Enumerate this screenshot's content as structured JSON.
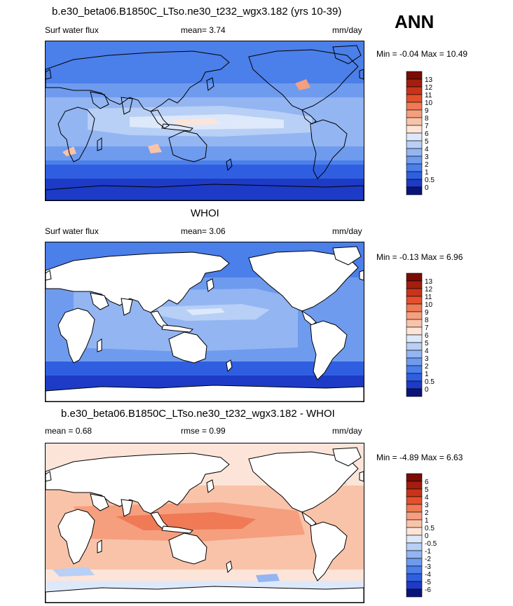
{
  "season": "ANN",
  "colors": {
    "fixed_scale": [
      "#0a1478",
      "#1d3bc6",
      "#2f5fe0",
      "#4b7fea",
      "#6f9bee",
      "#93b5f2",
      "#b8cff6",
      "#dde9fa",
      "#fde4d8",
      "#f9c3aa",
      "#f59f7e",
      "#ef7a55",
      "#e4502d",
      "#c8341a",
      "#a31e0e",
      "#7a0c05"
    ],
    "diff_scale": [
      "#0a1478",
      "#1d3bc6",
      "#2f5fe0",
      "#4b7fea",
      "#6f9bee",
      "#93b5f2",
      "#b8cff6",
      "#dde9fa",
      "#fde4d8",
      "#f9c3aa",
      "#f59f7e",
      "#ef7a55",
      "#e4502d",
      "#c8341a",
      "#a31e0e",
      "#7a0c05"
    ],
    "land": "#ffffff",
    "coast": "#000000"
  },
  "panels": [
    {
      "id": "model",
      "title": "b.e30_beta06.B1850C_LTso.ne30_t232_wgx3.182 (yrs 10-39)",
      "left_label": "Surf water flux",
      "mid_label": "mean=  3.74",
      "units": "mm/day",
      "minmax": "Min =  -0.04 Max =  10.49",
      "colorbar_labels": [
        "13",
        "12",
        "11",
        "10",
        "9",
        "8",
        "7",
        "6",
        "5",
        "4",
        "3",
        "2",
        "1",
        "0.5",
        "0"
      ],
      "land_masked": false,
      "mean_value": 3.74
    },
    {
      "id": "obs",
      "title": "WHOI",
      "left_label": "Surf water flux",
      "mid_label": "mean=  3.06",
      "units": "mm/day",
      "minmax": "Min =  -0.13 Max =  6.96",
      "colorbar_labels": [
        "13",
        "12",
        "11",
        "10",
        "9",
        "8",
        "7",
        "6",
        "5",
        "4",
        "3",
        "2",
        "1",
        "0.5",
        "0"
      ],
      "land_masked": true,
      "mean_value": 3.06
    },
    {
      "id": "diff",
      "title": "b.e30_beta06.B1850C_LTso.ne30_t232_wgx3.182 - WHOI",
      "left_label": "mean =  0.68",
      "mid_label": "rmse =  0.99",
      "units": "mm/day",
      "minmax": "Min =  -4.89 Max =  6.63",
      "colorbar_labels": [
        "6",
        "5",
        "4",
        "3",
        "2",
        "1",
        "0.5",
        "0",
        "-0.5",
        "-1",
        "-2",
        "-3",
        "-4",
        "-5",
        "-6"
      ],
      "land_masked": true,
      "mean_value": 0.68
    }
  ]
}
